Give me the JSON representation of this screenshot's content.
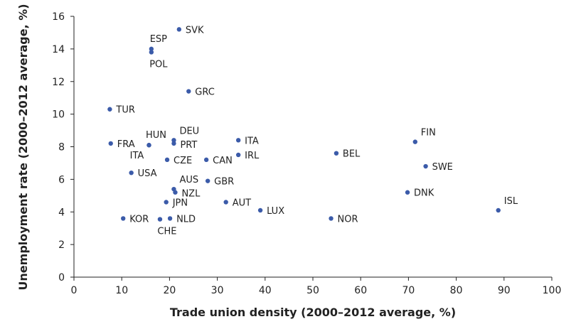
{
  "chart_data": {
    "type": "scatter",
    "xlabel": "Trade union density (2000–2012 average, %)",
    "ylabel": "Unemployment rate (2000–2012 average, %)",
    "xlim": [
      0,
      100
    ],
    "ylim": [
      0,
      16
    ],
    "xticks": [
      0,
      10,
      20,
      30,
      40,
      50,
      60,
      70,
      80,
      90,
      100
    ],
    "yticks": [
      0,
      2,
      4,
      6,
      8,
      10,
      12,
      14,
      16
    ],
    "grid": false,
    "point_color": "#3b5ba9",
    "points": [
      {
        "label": "SVK",
        "x": 22.0,
        "y": 15.2,
        "pos": "right"
      },
      {
        "label": "ESP",
        "x": 16.2,
        "y": 14.0,
        "pos": "above"
      },
      {
        "label": "POL",
        "x": 16.2,
        "y": 13.8,
        "pos": "below"
      },
      {
        "label": "GRC",
        "x": 24.0,
        "y": 11.4,
        "pos": "right"
      },
      {
        "label": "TUR",
        "x": 7.5,
        "y": 10.3,
        "pos": "right"
      },
      {
        "label": "HUN",
        "x": 15.7,
        "y": 8.1,
        "pos": "above"
      },
      {
        "label": "FRA",
        "x": 7.7,
        "y": 8.2,
        "pos": "right"
      },
      {
        "label": "ITA",
        "x": 15.7,
        "y": 8.1,
        "pos": "below-left"
      },
      {
        "label": "DEU",
        "x": 20.9,
        "y": 8.4,
        "pos": "right-up"
      },
      {
        "label": "PRT",
        "x": 20.9,
        "y": 8.2,
        "pos": "right-down"
      },
      {
        "label": "CZE",
        "x": 19.5,
        "y": 7.2,
        "pos": "right"
      },
      {
        "label": "ITA",
        "x": 34.4,
        "y": 8.4,
        "pos": "right"
      },
      {
        "label": "IRL",
        "x": 34.4,
        "y": 7.5,
        "pos": "right"
      },
      {
        "label": "CAN",
        "x": 27.7,
        "y": 7.2,
        "pos": "right"
      },
      {
        "label": "USA",
        "x": 12.0,
        "y": 6.4,
        "pos": "right"
      },
      {
        "label": "GBR",
        "x": 28.0,
        "y": 5.9,
        "pos": "right"
      },
      {
        "label": "AUS",
        "x": 20.9,
        "y": 5.4,
        "pos": "right-up"
      },
      {
        "label": "NZL",
        "x": 21.2,
        "y": 5.2,
        "pos": "right-down"
      },
      {
        "label": "JPN",
        "x": 19.3,
        "y": 4.6,
        "pos": "right"
      },
      {
        "label": "AUT",
        "x": 31.8,
        "y": 4.6,
        "pos": "right"
      },
      {
        "label": "LUX",
        "x": 39.0,
        "y": 4.1,
        "pos": "right"
      },
      {
        "label": "KOR",
        "x": 10.3,
        "y": 3.6,
        "pos": "right"
      },
      {
        "label": "CHE",
        "x": 18.0,
        "y": 3.55,
        "pos": "below"
      },
      {
        "label": "NLD",
        "x": 20.1,
        "y": 3.6,
        "pos": "right"
      },
      {
        "label": "BEL",
        "x": 54.9,
        "y": 7.6,
        "pos": "right"
      },
      {
        "label": "NOR",
        "x": 53.8,
        "y": 3.6,
        "pos": "right"
      },
      {
        "label": "FIN",
        "x": 71.4,
        "y": 8.3,
        "pos": "right-up"
      },
      {
        "label": "SWE",
        "x": 73.6,
        "y": 6.8,
        "pos": "right"
      },
      {
        "label": "DNK",
        "x": 69.8,
        "y": 5.2,
        "pos": "right"
      },
      {
        "label": "ISL",
        "x": 88.8,
        "y": 4.1,
        "pos": "right-up"
      }
    ]
  }
}
